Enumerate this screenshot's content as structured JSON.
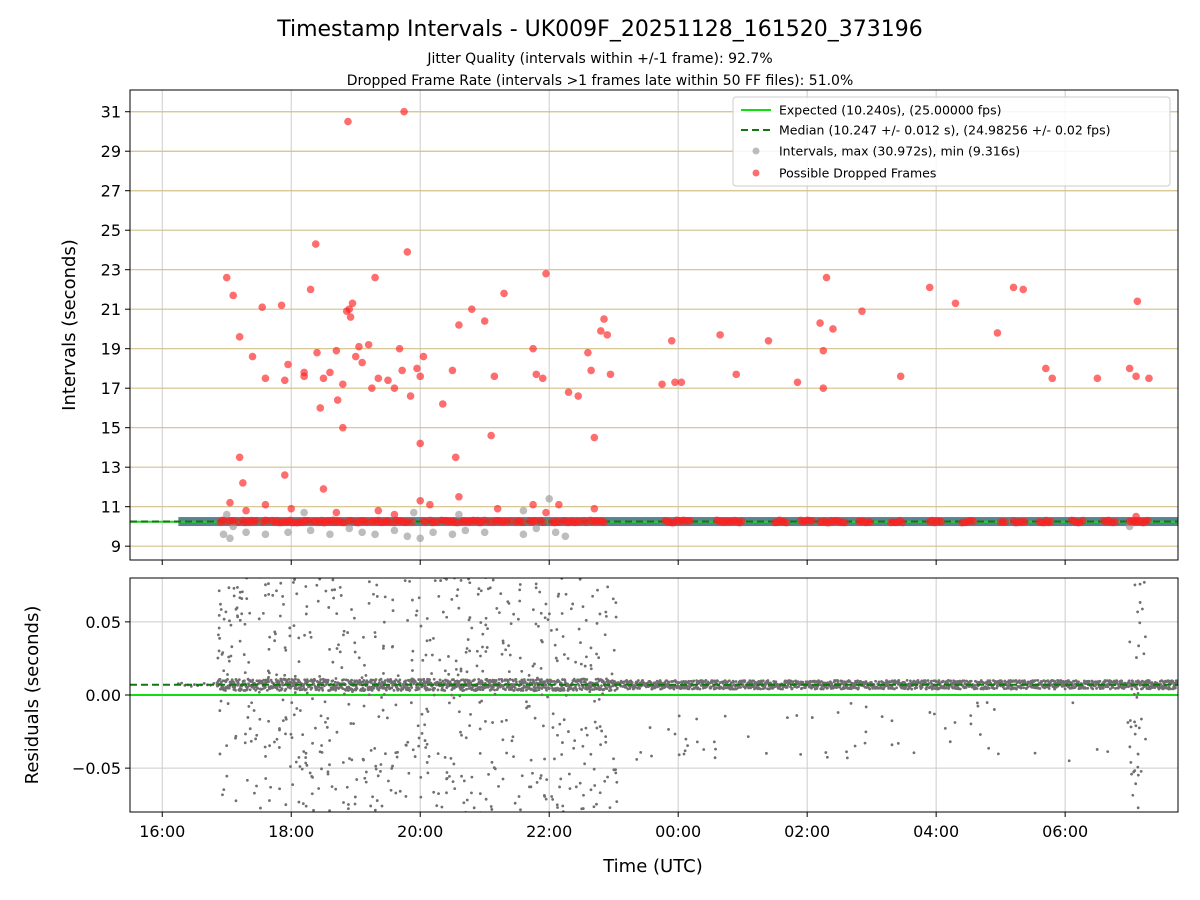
{
  "chart_data": [
    {
      "panel": "intervals",
      "type": "scatter",
      "title": "Timestamp Intervals - UK009F_20251128_161520_373196",
      "subtitle_lines": [
        "Jitter Quality (intervals within +/-1 frame): 92.7%",
        "Dropped Frame Rate (intervals >1 frames late within 50 FF files): 51.0%"
      ],
      "xlabel": "",
      "ylabel": "Intervals (seconds)",
      "xlim_hours": [
        15.5,
        31.75
      ],
      "ylim": [
        8.3,
        32.1
      ],
      "yticks": [
        9,
        11,
        13,
        15,
        17,
        19,
        21,
        23,
        25,
        27,
        29,
        31
      ],
      "grid": true,
      "legend_position": "top-right",
      "expected_interval": 10.24,
      "median_interval": 10.247,
      "legend": [
        "Expected (10.240s), (25.00000 fps)",
        "Median (10.247 +/- 0.012 s), (24.98256 +/- 0.02 fps)",
        "Intervals, max (30.972s), min (9.316s)",
        "Possible Dropped Frames"
      ],
      "series": [
        {
          "name": "Possible Dropped Frames",
          "color": "#ff2020",
          "points": [
            [
              17.0,
              22.6
            ],
            [
              17.1,
              21.7
            ],
            [
              17.2,
              19.6
            ],
            [
              17.4,
              18.6
            ],
            [
              17.6,
              17.5
            ],
            [
              17.55,
              21.1
            ],
            [
              17.85,
              21.2
            ],
            [
              17.9,
              17.4
            ],
            [
              17.95,
              18.2
            ],
            [
              18.2,
              17.8
            ],
            [
              18.2,
              17.6
            ],
            [
              18.3,
              22.0
            ],
            [
              18.38,
              24.3
            ],
            [
              18.4,
              18.8
            ],
            [
              18.5,
              17.5
            ],
            [
              18.6,
              17.8
            ],
            [
              18.7,
              18.9
            ],
            [
              18.72,
              16.4
            ],
            [
              18.8,
              17.2
            ],
            [
              18.86,
              20.9
            ],
            [
              18.88,
              30.5
            ],
            [
              18.9,
              21.0
            ],
            [
              18.92,
              20.6
            ],
            [
              18.95,
              21.3
            ],
            [
              19.0,
              18.6
            ],
            [
              19.05,
              19.1
            ],
            [
              19.1,
              18.3
            ],
            [
              19.2,
              19.2
            ],
            [
              19.25,
              17.0
            ],
            [
              19.3,
              22.6
            ],
            [
              19.35,
              17.5
            ],
            [
              19.5,
              17.4
            ],
            [
              19.6,
              17.0
            ],
            [
              19.68,
              19.0
            ],
            [
              19.72,
              17.9
            ],
            [
              19.75,
              31.0
            ],
            [
              19.8,
              23.9
            ],
            [
              19.85,
              16.6
            ],
            [
              19.95,
              18.0
            ],
            [
              20.0,
              17.6
            ],
            [
              20.05,
              18.6
            ],
            [
              20.35,
              16.2
            ],
            [
              20.5,
              17.9
            ],
            [
              20.55,
              13.5
            ],
            [
              20.6,
              20.2
            ],
            [
              20.8,
              21.0
            ],
            [
              21.0,
              20.4
            ],
            [
              21.1,
              14.6
            ],
            [
              21.15,
              17.6
            ],
            [
              21.3,
              21.8
            ],
            [
              21.75,
              19.0
            ],
            [
              21.8,
              17.7
            ],
            [
              21.9,
              17.5
            ],
            [
              21.95,
              22.8
            ],
            [
              22.3,
              16.8
            ],
            [
              22.45,
              16.6
            ],
            [
              22.6,
              18.8
            ],
            [
              22.65,
              17.9
            ],
            [
              22.7,
              14.5
            ],
            [
              22.8,
              19.9
            ],
            [
              22.85,
              20.5
            ],
            [
              22.9,
              19.7
            ],
            [
              22.95,
              17.7
            ],
            [
              23.75,
              17.2
            ],
            [
              23.9,
              19.4
            ],
            [
              23.95,
              17.3
            ],
            [
              24.05,
              17.3
            ],
            [
              24.65,
              19.7
            ],
            [
              24.9,
              17.7
            ],
            [
              25.4,
              19.4
            ],
            [
              25.85,
              17.3
            ],
            [
              26.2,
              20.3
            ],
            [
              26.25,
              18.9
            ],
            [
              26.25,
              17.0
            ],
            [
              26.3,
              22.6
            ],
            [
              26.4,
              20.0
            ],
            [
              26.85,
              20.9
            ],
            [
              27.45,
              17.6
            ],
            [
              27.9,
              22.1
            ],
            [
              28.3,
              21.3
            ],
            [
              28.95,
              19.8
            ],
            [
              29.2,
              22.1
            ],
            [
              29.35,
              22.0
            ],
            [
              29.7,
              18.0
            ],
            [
              29.8,
              17.5
            ],
            [
              30.5,
              17.5
            ],
            [
              31.0,
              18.0
            ],
            [
              31.1,
              17.6
            ],
            [
              31.12,
              21.4
            ],
            [
              31.3,
              17.5
            ],
            [
              17.2,
              13.5
            ],
            [
              17.25,
              12.2
            ],
            [
              17.05,
              11.2
            ],
            [
              17.9,
              12.6
            ],
            [
              18.5,
              11.9
            ],
            [
              18.8,
              15.0
            ],
            [
              18.45,
              16.0
            ],
            [
              20.0,
              14.2
            ],
            [
              17.3,
              10.8
            ],
            [
              17.6,
              11.1
            ],
            [
              18.0,
              10.9
            ],
            [
              18.7,
              10.7
            ],
            [
              19.35,
              10.8
            ],
            [
              19.6,
              10.6
            ],
            [
              20.0,
              11.3
            ],
            [
              20.15,
              11.1
            ],
            [
              20.6,
              11.5
            ],
            [
              21.2,
              10.9
            ],
            [
              21.75,
              11.1
            ],
            [
              21.95,
              10.7
            ],
            [
              22.15,
              11.1
            ],
            [
              22.7,
              10.9
            ],
            [
              31.1,
              10.5
            ]
          ]
        },
        {
          "name": "Intervals, max (30.972s), min (9.316s)",
          "color": "#999999",
          "points": [
            [
              16.95,
              9.6
            ],
            [
              17.05,
              9.4
            ],
            [
              17.1,
              10.0
            ],
            [
              17.3,
              9.7
            ],
            [
              17.6,
              9.6
            ],
            [
              17.95,
              9.7
            ],
            [
              18.3,
              9.8
            ],
            [
              18.6,
              9.6
            ],
            [
              18.9,
              9.9
            ],
            [
              19.1,
              9.7
            ],
            [
              19.3,
              9.6
            ],
            [
              19.6,
              9.8
            ],
            [
              19.8,
              9.5
            ],
            [
              20.0,
              9.4
            ],
            [
              20.2,
              9.7
            ],
            [
              20.5,
              9.6
            ],
            [
              20.7,
              9.8
            ],
            [
              21.0,
              9.7
            ],
            [
              21.6,
              9.6
            ],
            [
              21.8,
              9.9
            ],
            [
              22.1,
              9.7
            ],
            [
              22.25,
              9.5
            ],
            [
              17.0,
              10.6
            ],
            [
              18.2,
              10.7
            ],
            [
              19.9,
              10.7
            ],
            [
              20.6,
              10.6
            ],
            [
              21.6,
              10.8
            ],
            [
              22.0,
              11.4
            ],
            [
              31.0,
              10.0
            ]
          ]
        }
      ]
    },
    {
      "panel": "residuals",
      "type": "scatter",
      "xlabel": "Time (UTC)",
      "ylabel": "Residuals (seconds)",
      "xlim_hours": [
        15.5,
        31.75
      ],
      "ylim": [
        -0.08,
        0.08
      ],
      "yticks": [
        -0.05,
        0.0,
        0.05
      ],
      "ytick_labels": [
        "−0.05",
        "0.00",
        "0.05"
      ],
      "xticks_hours": [
        16,
        18,
        20,
        22,
        24,
        26,
        28,
        30
      ],
      "xtick_labels": [
        "16:00",
        "18:00",
        "20:00",
        "22:00",
        "00:00",
        "02:00",
        "04:00",
        "06:00"
      ],
      "expected_residual": 0.0,
      "median_residual": 0.007,
      "grid": true,
      "point_color": "#707070"
    }
  ],
  "colors": {
    "expected_line": "#11dd11",
    "median_line": "#117711",
    "interval_band": "#4a7386",
    "hgrid_intervals": "#d3c08a",
    "grid": "#cccccc"
  }
}
